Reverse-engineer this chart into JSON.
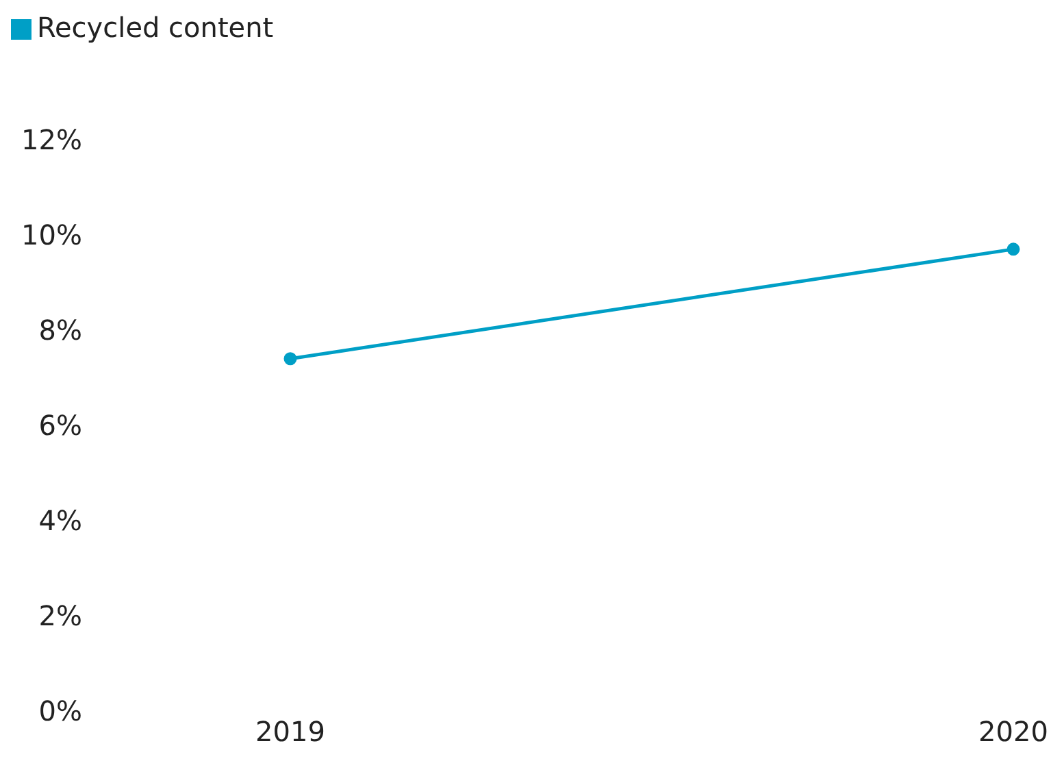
{
  "chart_data": {
    "type": "line",
    "categories": [
      "2019",
      "2020"
    ],
    "series": [
      {
        "name": "Recycled content",
        "color": "#009fc6",
        "values": [
          7.4,
          9.7
        ]
      }
    ],
    "ylim": [
      0,
      12
    ],
    "yticks": [
      {
        "value": 0,
        "label": "0%"
      },
      {
        "value": 2,
        "label": "2%"
      },
      {
        "value": 4,
        "label": "4%"
      },
      {
        "value": 6,
        "label": "6%"
      },
      {
        "value": 8,
        "label": "8%"
      },
      {
        "value": 10,
        "label": "10%"
      },
      {
        "value": 12,
        "label": "12%"
      }
    ],
    "grid": false,
    "legend": "top left",
    "marker": "circle",
    "line_style": "solid"
  }
}
